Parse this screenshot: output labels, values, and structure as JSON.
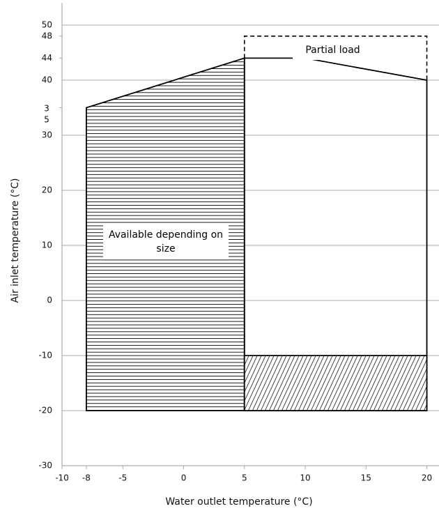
{
  "chart_data": {
    "type": "polygon",
    "x_label": "Water outlet temperature (°C)",
    "y_label": "Air inlet temperature (°C)",
    "xlim": [
      -10,
      21
    ],
    "ylim": [
      -30,
      54
    ],
    "xticks": [
      -10,
      -8,
      -5,
      0,
      5,
      10,
      15,
      20
    ],
    "yticks": [
      -30,
      -20,
      -10,
      0,
      10,
      20,
      30,
      35,
      40,
      44,
      48,
      50
    ],
    "grid_step": 10,
    "series": [
      {
        "x": [
          -8,
          -8,
          5,
          5
        ],
        "y": [
          -20,
          35,
          44,
          -20
        ],
        "fill": "horizontal-hatch",
        "color": "#000000"
      },
      {
        "x": [
          5,
          10,
          20,
          20,
          5
        ],
        "y": [
          44,
          44,
          40,
          -20,
          -20
        ],
        "fill": "none",
        "color": "#000000"
      },
      {
        "x": [
          5,
          20,
          20,
          5
        ],
        "y": [
          -10,
          -10,
          -20,
          -20
        ],
        "fill": "diagonal-hatch",
        "color": "#000000"
      },
      {
        "x": [
          5,
          5,
          20,
          20
        ],
        "y": [
          44,
          48,
          48,
          40
        ],
        "fill": "none",
        "dash": true,
        "color": "#000000"
      }
    ],
    "annotations": [
      "Partial load",
      "Available depending on size"
    ]
  }
}
